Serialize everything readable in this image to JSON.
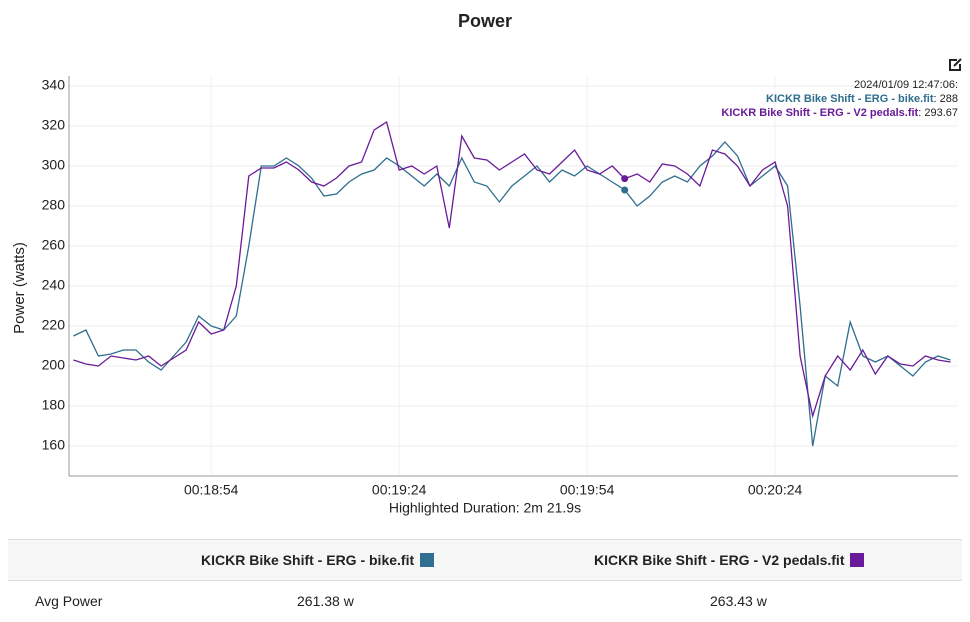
{
  "chart_data": {
    "type": "line",
    "title": "Power",
    "ylabel": "Power (watts)",
    "xlabel": "Highlighted Duration: 2m 21.9s",
    "x": [
      1112,
      1114,
      1116,
      1118,
      1120,
      1122,
      1124,
      1126,
      1128,
      1130,
      1132,
      1134,
      1136,
      1138,
      1140,
      1142,
      1144,
      1146,
      1148,
      1150,
      1152,
      1154,
      1156,
      1158,
      1160,
      1162,
      1164,
      1166,
      1168,
      1170,
      1172,
      1174,
      1176,
      1178,
      1180,
      1182,
      1184,
      1186,
      1188,
      1190,
      1192,
      1194,
      1196,
      1198,
      1200,
      1202,
      1204,
      1206,
      1208,
      1210,
      1212,
      1214,
      1216,
      1218,
      1220,
      1222,
      1224,
      1226,
      1228,
      1230,
      1232,
      1234,
      1236,
      1238,
      1240,
      1242,
      1244,
      1246,
      1248,
      1250,
      1252
    ],
    "series": [
      {
        "name": "KICKR Bike Shift - ERG - bike.fit",
        "color": "#2e6e8e",
        "values": [
          215,
          218,
          205,
          206,
          208,
          208,
          202,
          198,
          205,
          212,
          225,
          220,
          218,
          225,
          260,
          300,
          300,
          304,
          300,
          294,
          285,
          286,
          292,
          296,
          298,
          304,
          300,
          295,
          290,
          296,
          290,
          304,
          292,
          290,
          282,
          290,
          295,
          300,
          292,
          298,
          295,
          300,
          296,
          292,
          288,
          280,
          285,
          292,
          295,
          292,
          300,
          305,
          312,
          305,
          290,
          295,
          300,
          290,
          230,
          160,
          195,
          190,
          222,
          205,
          202,
          205,
          200,
          195,
          202,
          205,
          203
        ]
      },
      {
        "name": "KICKR Bike Shift - ERG - V2 pedals.fit",
        "color": "#6a1b9a",
        "values": [
          203,
          201,
          200,
          205,
          204,
          203,
          205,
          200,
          204,
          208,
          222,
          216,
          218,
          240,
          295,
          299,
          299,
          302,
          298,
          292,
          290,
          294,
          300,
          302,
          318,
          322,
          298,
          300,
          296,
          300,
          269,
          315,
          304,
          303,
          298,
          302,
          306,
          298,
          296,
          302,
          308,
          298,
          296,
          300,
          293.67,
          296,
          292,
          301,
          300,
          296,
          290,
          308,
          306,
          300,
          290,
          298,
          302,
          280,
          205,
          175,
          195,
          205,
          198,
          208,
          196,
          205,
          201,
          200,
          205,
          203,
          202
        ]
      }
    ],
    "xlim": [
      1111.3,
      1253.2
    ],
    "xticks": [
      {
        "value": 1134,
        "label": "00:18:54"
      },
      {
        "value": 1164,
        "label": "00:19:24"
      },
      {
        "value": 1194,
        "label": "00:19:54"
      },
      {
        "value": 1224,
        "label": "00:20:24"
      }
    ],
    "ylim": [
      145,
      345
    ],
    "yticks": [
      160,
      180,
      200,
      220,
      240,
      260,
      280,
      300,
      320,
      340
    ],
    "grid": true,
    "tooltip": {
      "time": "2024/01/09 12:47:06:",
      "values": [
        288,
        293.67
      ]
    }
  },
  "table": {
    "rows": [
      [
        "Avg Power",
        "261.38 w",
        "263.43 w"
      ]
    ]
  }
}
